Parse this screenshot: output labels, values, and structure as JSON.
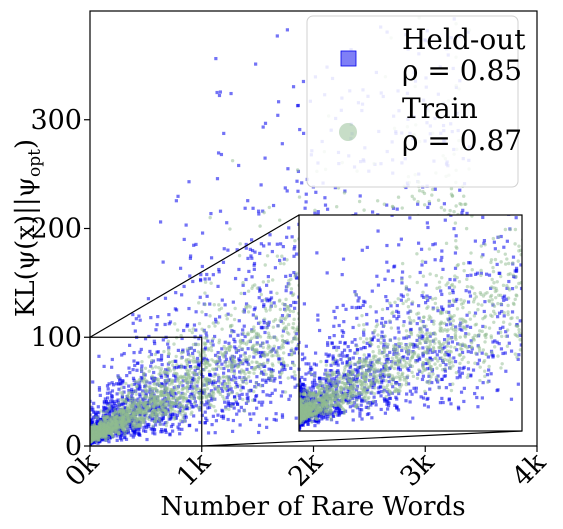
{
  "chart_data": {
    "type": "scatter",
    "xlabel": "Number of Rare Words",
    "ylabel": "KL(ψ(x)||ψ_opt)",
    "ylabel_main": "KL(ψ(x)||ψ",
    "ylabel_sub": "opt",
    "ylabel_close": ")",
    "xlim": [
      0,
      4000
    ],
    "ylim": [
      0,
      400
    ],
    "x_ticks": [
      {
        "value": 0,
        "label": "0k"
      },
      {
        "value": 1000,
        "label": "1k"
      },
      {
        "value": 2000,
        "label": "2k"
      },
      {
        "value": 3000,
        "label": "3k"
      },
      {
        "value": 4000,
        "label": "4k"
      }
    ],
    "y_ticks": [
      {
        "value": 0,
        "label": "0"
      },
      {
        "value": 100,
        "label": "100"
      },
      {
        "value": 200,
        "label": "200"
      },
      {
        "value": 300,
        "label": "300"
      }
    ],
    "legend_position": "top-right",
    "series": [
      {
        "name": "Held-out",
        "stat": "ρ = 0.85",
        "color": "#0000ee",
        "marker": "square",
        "correlation": 0.85
      },
      {
        "name": "Train",
        "stat": "ρ = 0.87",
        "color": "#8fbc8f",
        "marker": "circle",
        "correlation": 0.87
      }
    ],
    "inset": {
      "source_xlim": [
        0,
        1000
      ],
      "source_ylim": [
        0,
        100
      ]
    }
  }
}
